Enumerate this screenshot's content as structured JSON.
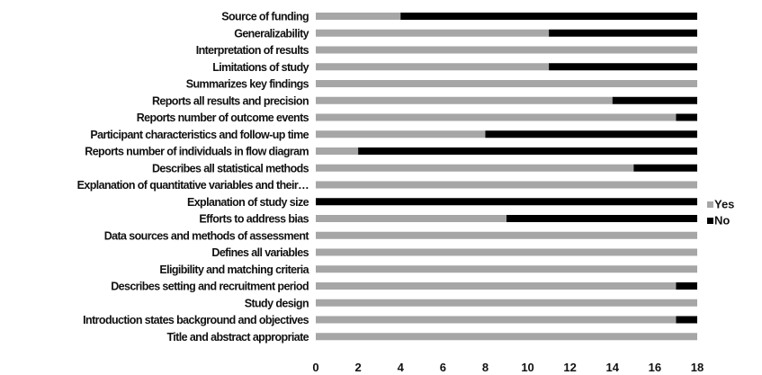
{
  "chart_data": {
    "type": "bar",
    "orientation": "horizontal",
    "stacked": true,
    "categories": [
      "Source of funding",
      "Generalizability",
      "Interpretation of results",
      "Limitations of study",
      "Summarizes key findings",
      "Reports all results and precision",
      "Reports number of outcome events",
      "Participant characteristics and follow-up time",
      "Reports number of individuals in flow diagram",
      "Describes all statistical methods",
      "Explanation of quantitative variables and their…",
      "Explanation of study size",
      "Efforts to address bias",
      "Data sources and methods of assessment",
      "Defines all variables",
      "Eligibility and matching criteria",
      "Describes setting and recruitment period",
      "Study design",
      "Introduction states background and objectives",
      "Title and abstract appropriate"
    ],
    "series": [
      {
        "name": "Yes",
        "color": "#a6a6a6",
        "values": [
          4,
          11,
          18,
          11,
          18,
          14,
          17,
          8,
          2,
          15,
          18,
          0,
          9,
          18,
          18,
          18,
          17,
          18,
          17,
          18
        ]
      },
      {
        "name": "No",
        "color": "#000000",
        "values": [
          14,
          7,
          0,
          7,
          0,
          4,
          1,
          10,
          16,
          3,
          0,
          18,
          9,
          0,
          0,
          0,
          1,
          0,
          1,
          0
        ]
      }
    ],
    "xlim": [
      0,
      18
    ],
    "xticks": [
      0,
      2,
      4,
      6,
      8,
      10,
      12,
      14,
      16,
      18
    ],
    "title": "",
    "xlabel": "",
    "ylabel": "",
    "grid": false,
    "legend_position": "right"
  }
}
